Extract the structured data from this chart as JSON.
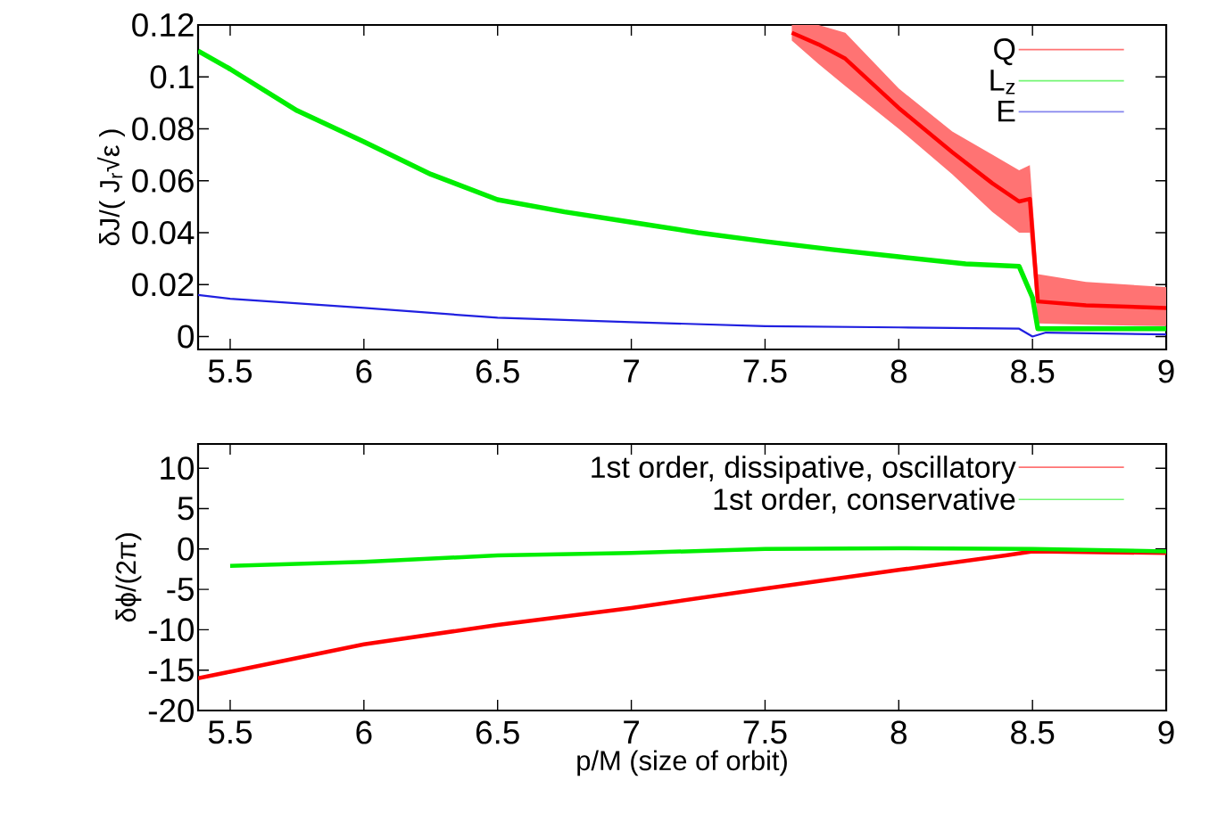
{
  "chart_data": [
    {
      "type": "line",
      "ylabel": "δJ/( J$_{r}$√ε )",
      "xlim": [
        5.38,
        9
      ],
      "ylim": [
        -0.005,
        0.12
      ],
      "xticks": [
        5.5,
        6,
        6.5,
        7,
        7.5,
        8,
        8.5,
        9
      ],
      "yticks": [
        0,
        0.02,
        0.04,
        0.06,
        0.08,
        0.1,
        0.12
      ],
      "legend": "top right",
      "series": [
        {
          "name": "Q",
          "color": "#ff0000",
          "x": [
            7.6,
            7.7,
            7.8,
            8.0,
            8.2,
            8.35,
            8.45,
            8.49,
            8.52,
            8.7,
            9.0
          ],
          "values": [
            0.117,
            0.1125,
            0.107,
            0.088,
            0.071,
            0.059,
            0.052,
            0.053,
            0.0135,
            0.012,
            0.011
          ],
          "lower": [
            0.114,
            0.105,
            0.0965,
            0.08,
            0.0625,
            0.048,
            0.04,
            0.04,
            0.005,
            0.0045,
            0.004
          ],
          "upper": [
            0.12,
            0.12,
            0.117,
            0.0955,
            0.079,
            0.07,
            0.064,
            0.066,
            0.024,
            0.021,
            0.019
          ]
        },
        {
          "name": "L$_{z}$",
          "color": "#00ee00",
          "x": [
            5.38,
            5.5,
            5.75,
            6.0,
            6.25,
            6.5,
            6.75,
            7.0,
            7.25,
            7.5,
            7.75,
            8.0,
            8.25,
            8.45,
            8.5,
            8.52,
            9.0
          ],
          "values": [
            0.11,
            0.103,
            0.087,
            0.075,
            0.0625,
            0.0527,
            0.048,
            0.044,
            0.04,
            0.0366,
            0.0335,
            0.0307,
            0.028,
            0.027,
            0.015,
            0.003,
            0.003
          ]
        },
        {
          "name": "E",
          "color": "#2020e0",
          "x": [
            5.38,
            5.5,
            6.0,
            6.5,
            7.0,
            7.5,
            8.0,
            8.45,
            8.5,
            8.55,
            9.0
          ],
          "values": [
            0.016,
            0.0145,
            0.011,
            0.0072,
            0.0055,
            0.004,
            0.0035,
            0.003,
            0.0,
            0.0015,
            0.0008
          ]
        }
      ]
    },
    {
      "type": "line",
      "xlabel": "p/M   (size of orbit)",
      "ylabel": "δϕ/(2π)",
      "xlim": [
        5.38,
        9
      ],
      "ylim": [
        -20,
        13
      ],
      "xticks": [
        5.5,
        6,
        6.5,
        7,
        7.5,
        8,
        8.5,
        9
      ],
      "yticks": [
        -20,
        -15,
        -10,
        -5,
        0,
        5,
        10
      ],
      "legend": "top right",
      "series": [
        {
          "name": "1st order, dissipative, oscillatory",
          "color": "#ff0000",
          "x": [
            5.38,
            5.5,
            6.0,
            6.5,
            7.0,
            7.5,
            8.0,
            8.4,
            8.5,
            9.0
          ],
          "values": [
            -16,
            -15.2,
            -11.8,
            -9.4,
            -7.3,
            -4.9,
            -2.6,
            -0.8,
            -0.3,
            -0.5
          ]
        },
        {
          "name": "1st order, conservative",
          "color": "#00ee00",
          "x": [
            5.5,
            6.0,
            6.5,
            7.0,
            7.5,
            8.0,
            8.5,
            9.0
          ],
          "values": [
            -2.1,
            -1.6,
            -0.8,
            -0.5,
            0,
            0.1,
            0,
            -0.3
          ]
        }
      ]
    }
  ]
}
